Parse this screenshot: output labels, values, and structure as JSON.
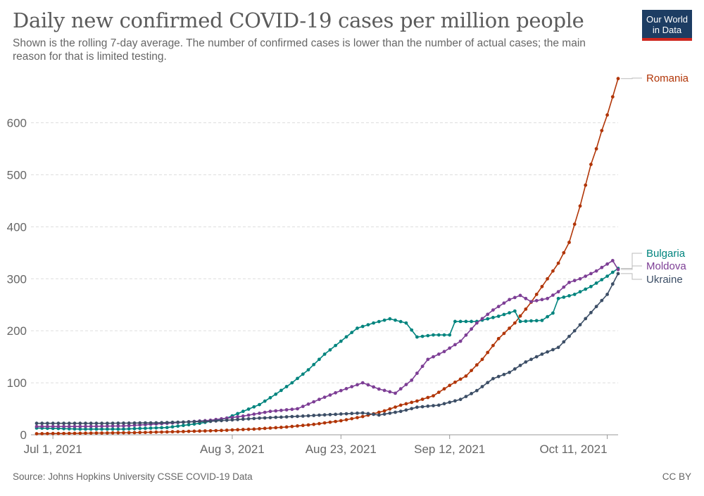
{
  "header": {
    "title": "Daily new confirmed COVID-19 cases per million people",
    "subtitle": "Shown is the rolling 7-day average. The number of confirmed cases is lower than the number of actual cases; the main reason for that is limited testing.",
    "logo_line1": "Our World",
    "logo_line2": "in Data"
  },
  "footer": {
    "source": "Source: Johns Hopkins University CSSE COVID-19 Data",
    "license": "CC BY"
  },
  "colors": {
    "Romania": "#b13507",
    "Bulgaria": "#00847e",
    "Moldova": "#883039",
    "Ukraine": "#3c4e66",
    "grid": "#dddddd",
    "axis": "#666666"
  },
  "chart_data": {
    "type": "line",
    "title": "Daily new confirmed COVID-19 cases per million people",
    "x_start": "2021-06-28",
    "x_end": "2021-10-13",
    "xticks": [
      {
        "date": "2021-07-01",
        "label": "Jul 1, 2021"
      },
      {
        "date": "2021-08-03",
        "label": "Aug 3, 2021"
      },
      {
        "date": "2021-08-23",
        "label": "Aug 23, 2021"
      },
      {
        "date": "2021-09-12",
        "label": "Sep 12, 2021"
      },
      {
        "date": "2021-10-11",
        "label": "Oct 11, 2021"
      }
    ],
    "ylim": [
      0,
      690
    ],
    "yticks": [
      0,
      100,
      200,
      300,
      400,
      500,
      600
    ],
    "grid": true,
    "legend": "inline-right",
    "series": [
      {
        "name": "Romania",
        "color": "#b13507",
        "points": [
          [
            "2021-06-28",
            2
          ],
          [
            "2021-07-06",
            3
          ],
          [
            "2021-07-15",
            4
          ],
          [
            "2021-07-24",
            6
          ],
          [
            "2021-07-31",
            8
          ],
          [
            "2021-08-07",
            11
          ],
          [
            "2021-08-13",
            15
          ],
          [
            "2021-08-18",
            20
          ],
          [
            "2021-08-23",
            27
          ],
          [
            "2021-08-27",
            35
          ],
          [
            "2021-08-31",
            46
          ],
          [
            "2021-09-03",
            57
          ],
          [
            "2021-09-06",
            65
          ],
          [
            "2021-09-09",
            75
          ],
          [
            "2021-09-12",
            95
          ],
          [
            "2021-09-15",
            113
          ],
          [
            "2021-09-18",
            145
          ],
          [
            "2021-09-21",
            185
          ],
          [
            "2021-09-24",
            215
          ],
          [
            "2021-09-27",
            255
          ],
          [
            "2021-09-30",
            300
          ],
          [
            "2021-10-02",
            330
          ],
          [
            "2021-10-04",
            370
          ],
          [
            "2021-10-06",
            440
          ],
          [
            "2021-10-07",
            480
          ],
          [
            "2021-10-08",
            520
          ],
          [
            "2021-10-09",
            550
          ],
          [
            "2021-10-10",
            585
          ],
          [
            "2021-10-11",
            615
          ],
          [
            "2021-10-12",
            650
          ],
          [
            "2021-10-13",
            685
          ]
        ]
      },
      {
        "name": "Bulgaria",
        "color": "#00847e",
        "points": [
          [
            "2021-06-28",
            13
          ],
          [
            "2021-07-06",
            11
          ],
          [
            "2021-07-14",
            11
          ],
          [
            "2021-07-22",
            14
          ],
          [
            "2021-07-28",
            22
          ],
          [
            "2021-08-02",
            32
          ],
          [
            "2021-08-05",
            45
          ],
          [
            "2021-08-08",
            58
          ],
          [
            "2021-08-11",
            78
          ],
          [
            "2021-08-14",
            100
          ],
          [
            "2021-08-17",
            125
          ],
          [
            "2021-08-20",
            155
          ],
          [
            "2021-08-23",
            180
          ],
          [
            "2021-08-26",
            205
          ],
          [
            "2021-08-29",
            215
          ],
          [
            "2021-09-01",
            223
          ],
          [
            "2021-09-04",
            215
          ],
          [
            "2021-09-06",
            188
          ],
          [
            "2021-09-09",
            192
          ],
          [
            "2021-09-12",
            192
          ],
          [
            "2021-09-13",
            218
          ],
          [
            "2021-09-17",
            218
          ],
          [
            "2021-09-21",
            228
          ],
          [
            "2021-09-24",
            238
          ],
          [
            "2021-09-25",
            218
          ],
          [
            "2021-09-29",
            220
          ],
          [
            "2021-10-01",
            234
          ],
          [
            "2021-10-02",
            262
          ],
          [
            "2021-10-05",
            270
          ],
          [
            "2021-10-08",
            285
          ],
          [
            "2021-10-11",
            305
          ],
          [
            "2021-10-13",
            320
          ]
        ]
      },
      {
        "name": "Moldova",
        "color": "#7d3e95",
        "points": [
          [
            "2021-06-28",
            16
          ],
          [
            "2021-07-06",
            16
          ],
          [
            "2021-07-14",
            17
          ],
          [
            "2021-07-22",
            22
          ],
          [
            "2021-07-30",
            28
          ],
          [
            "2021-08-05",
            36
          ],
          [
            "2021-08-10",
            45
          ],
          [
            "2021-08-15",
            50
          ],
          [
            "2021-08-19",
            68
          ],
          [
            "2021-08-23",
            85
          ],
          [
            "2021-08-27",
            100
          ],
          [
            "2021-08-30",
            88
          ],
          [
            "2021-09-02",
            80
          ],
          [
            "2021-09-05",
            105
          ],
          [
            "2021-09-08",
            145
          ],
          [
            "2021-09-11",
            160
          ],
          [
            "2021-09-14",
            180
          ],
          [
            "2021-09-17",
            215
          ],
          [
            "2021-09-20",
            240
          ],
          [
            "2021-09-23",
            260
          ],
          [
            "2021-09-25",
            268
          ],
          [
            "2021-09-27",
            256
          ],
          [
            "2021-09-30",
            262
          ],
          [
            "2021-10-02",
            275
          ],
          [
            "2021-10-04",
            293
          ],
          [
            "2021-10-06",
            300
          ],
          [
            "2021-10-09",
            315
          ],
          [
            "2021-10-12",
            335
          ],
          [
            "2021-10-13",
            318
          ]
        ]
      },
      {
        "name": "Ukraine",
        "color": "#3c4e66",
        "points": [
          [
            "2021-06-28",
            22
          ],
          [
            "2021-07-10",
            22
          ],
          [
            "2021-07-20",
            23
          ],
          [
            "2021-07-30",
            26
          ],
          [
            "2021-08-08",
            32
          ],
          [
            "2021-08-16",
            36
          ],
          [
            "2021-08-23",
            40
          ],
          [
            "2021-08-27",
            42
          ],
          [
            "2021-08-30",
            38
          ],
          [
            "2021-09-03",
            45
          ],
          [
            "2021-09-06",
            53
          ],
          [
            "2021-09-10",
            57
          ],
          [
            "2021-09-14",
            68
          ],
          [
            "2021-09-17",
            85
          ],
          [
            "2021-09-20",
            108
          ],
          [
            "2021-09-23",
            120
          ],
          [
            "2021-09-26",
            140
          ],
          [
            "2021-09-29",
            155
          ],
          [
            "2021-10-02",
            168
          ],
          [
            "2021-10-05",
            200
          ],
          [
            "2021-10-08",
            235
          ],
          [
            "2021-10-11",
            270
          ],
          [
            "2021-10-13",
            310
          ]
        ]
      }
    ]
  }
}
